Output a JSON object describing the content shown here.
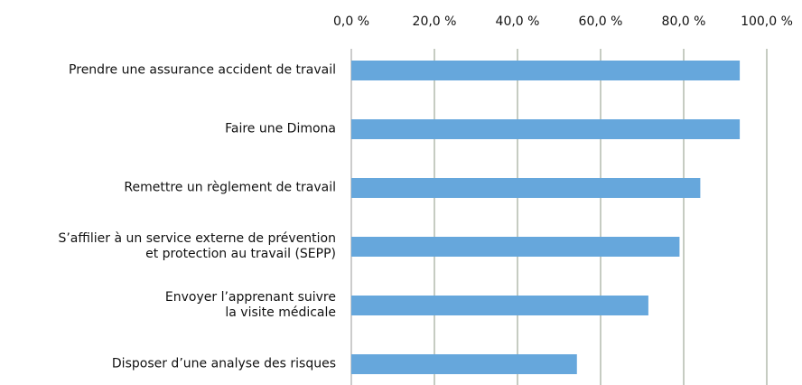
{
  "chart_data": {
    "type": "hbar",
    "categories": [
      "Prendre une assurance accident de travail",
      "Faire une Dimona",
      "Remettre un règlement de travail",
      "S’affilier à un service externe de prévention\net protection au travail (SEPP)",
      "Envoyer l’apprenant suivre\nla visite médicale",
      "Disposer d’une analyse des risques"
    ],
    "values": [
      93.5,
      93.5,
      84,
      79,
      71.5,
      54.3
    ],
    "color": "#66a7dc",
    "xlim": [
      0,
      100
    ],
    "xticks": [
      {
        "value": 0,
        "label": "0,0 %"
      },
      {
        "value": 20,
        "label": "20,0 %"
      },
      {
        "value": 40,
        "label": "40,0 %"
      },
      {
        "value": 60,
        "label": "60,0 %"
      },
      {
        "value": 80,
        "label": "80,0 %"
      },
      {
        "value": 100,
        "label": "100,0 %"
      }
    ],
    "grid": true
  }
}
